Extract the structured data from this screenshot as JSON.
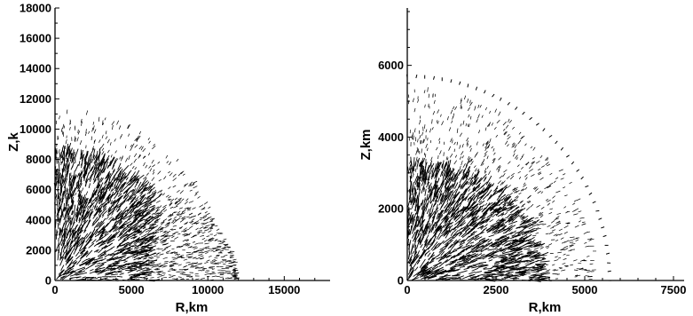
{
  "chart_data": [
    {
      "type": "vector-field",
      "xlabel": "R,km",
      "ylabel": "Z,km",
      "ylabel_visible": "Z,k",
      "xlim": [
        0,
        18000
      ],
      "ylim": [
        0,
        18000
      ],
      "xticks": [
        0,
        5000,
        10000,
        15000
      ],
      "yticks": [
        0,
        2000,
        4000,
        6000,
        8000,
        10000,
        12000,
        14000,
        16000,
        18000
      ],
      "field": {
        "dense_region_radius": 8500,
        "dense_region_x_max": 6200,
        "sparse_region_radius": 11200,
        "lower_lobe": {
          "x_max": 11800,
          "z_max": 6000
        }
      }
    },
    {
      "type": "vector-field",
      "xlabel": "R,km",
      "ylabel": "Z,km",
      "xlim": [
        0,
        7800
      ],
      "ylim": [
        0,
        7600
      ],
      "xticks": [
        0,
        2500,
        5000,
        7500
      ],
      "yticks": [
        0,
        2000,
        4000,
        6000
      ],
      "field": {
        "dense_region_radius": 3800,
        "dense_region_z_max": 3200,
        "sparse_region_radius": 5300,
        "outer_ring_radius": 5650
      }
    }
  ]
}
